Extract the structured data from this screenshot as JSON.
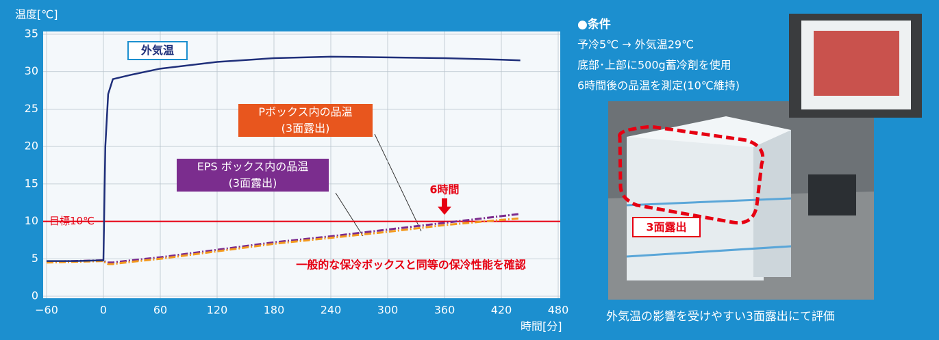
{
  "chart_data": {
    "type": "line",
    "ylabel": "温度[℃]",
    "xlabel": "時間[分]",
    "x": [
      -60,
      -30,
      0,
      2,
      5,
      10,
      30,
      60,
      120,
      180,
      240,
      300,
      360,
      420,
      440
    ],
    "series": [
      {
        "name": "外気温",
        "color": "#1f2f7a",
        "style": "solid",
        "values": [
          4.7,
          4.7,
          4.8,
          20,
          27,
          29,
          29.6,
          30.4,
          31.3,
          31.8,
          32,
          31.9,
          31.8,
          31.6,
          31.5
        ]
      },
      {
        "name": "Pボックス内の品温\n(3面露出)",
        "color": "#f39a1e",
        "style": "dashdot",
        "values": [
          4.5,
          4.6,
          4.7,
          4.5,
          4.3,
          4.3,
          4.6,
          5.0,
          6.0,
          7.0,
          7.8,
          8.6,
          9.5,
          10.2,
          10.4
        ]
      },
      {
        "name": "EPS ボックス内の品温\n(3面露出)",
        "color": "#7b2a8c",
        "style": "dashdot",
        "values": [
          4.6,
          4.7,
          4.8,
          4.6,
          4.5,
          4.5,
          4.8,
          5.2,
          6.2,
          7.2,
          8.0,
          8.9,
          9.8,
          10.7,
          11.0
        ]
      }
    ],
    "target": {
      "label": "目標10℃",
      "value": 10,
      "color": "#e60012"
    },
    "annotation": {
      "text": "6時間",
      "x": 360
    },
    "note": "一般的な保冷ボックスと同等の保冷性能を確認",
    "xlim": [
      -60,
      480
    ],
    "xticks": [
      {
        "value": -60,
        "label": "−60"
      },
      0,
      60,
      120,
      180,
      240,
      300,
      360,
      420,
      480
    ],
    "ylim": [
      0,
      35
    ],
    "yticks": [
      0,
      5,
      10,
      15,
      20,
      25,
      30,
      35
    ],
    "grid": true
  },
  "conditions": {
    "title": "●条件",
    "lines": [
      "予冷5℃ → 外気温29℃",
      "底部･上部に500g蓄冷剤を使用",
      "6時間後の品温を測定(10℃維持)"
    ]
  },
  "photo": {
    "label": "3面露出",
    "caption": "外気温の影響を受けやすい3面露出にて評価"
  }
}
